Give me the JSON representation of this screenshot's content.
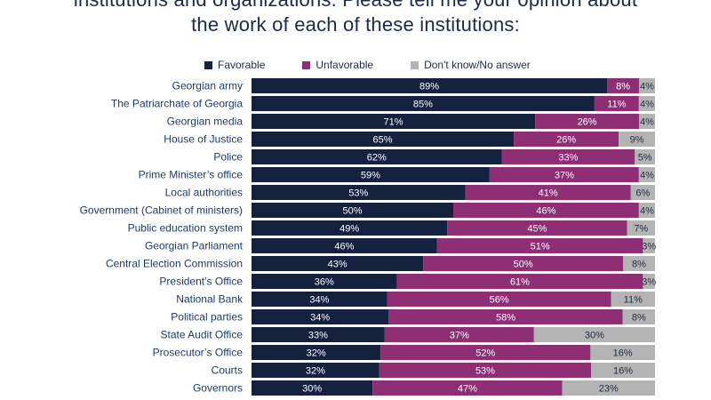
{
  "title_lines": [
    "institutions and organizations. Please tell me your opinion about",
    "the work of each of these institutions:"
  ],
  "colors": {
    "favorable": "#14213f",
    "unfavorable": "#8e2f76",
    "dont_know": "#b4b4b4",
    "label_light": "#ffffff",
    "label_dark": "#1f2b45"
  },
  "chart_data": {
    "type": "bar",
    "orientation": "horizontal",
    "stacked": true,
    "xlim": [
      0,
      100
    ],
    "legend_position": "top",
    "grid": false,
    "categories": [
      "Georgian army",
      "The Patriarchate of Georgia",
      "Georgian media",
      "House of Justice",
      "Police",
      "Prime Minister’s office",
      "Local authorities",
      "Government (Cabinet of ministers)",
      "Public education system",
      "Georgian Parliament",
      "Central Election Commission",
      "President’s Office",
      "National Bank",
      "Political parties",
      "State Audit Office",
      "Prosecutor’s Office",
      "Courts",
      "Governors"
    ],
    "series": [
      {
        "name": "Favorable",
        "values": [
          89,
          85,
          71,
          65,
          62,
          59,
          53,
          50,
          49,
          46,
          43,
          36,
          34,
          34,
          33,
          32,
          32,
          30
        ],
        "labels": [
          "89%",
          "85%",
          "71%",
          "65%",
          "62%",
          "59%",
          "53%",
          "50%",
          "49%",
          "46%",
          "43%",
          "36%",
          "34%",
          "34%",
          "33%",
          "32%",
          "32%",
          "30%"
        ]
      },
      {
        "name": "Unfavorable",
        "values": [
          8,
          11,
          26,
          26,
          33,
          37,
          41,
          46,
          45,
          51,
          50,
          61,
          56,
          58,
          37,
          52,
          53,
          47
        ],
        "labels": [
          "8%",
          "11%",
          "26%",
          "26%",
          "33%",
          "37%",
          "41%",
          "46%",
          "45%",
          "51%",
          "50%",
          "61%",
          "56%",
          "58%",
          "37%",
          "52%",
          "53%",
          "47%"
        ]
      },
      {
        "name": "Don't know/No answer",
        "values": [
          4,
          4,
          4,
          9,
          5,
          4,
          6,
          4,
          7,
          3,
          8,
          3,
          11,
          8,
          30,
          16,
          16,
          23
        ],
        "labels": [
          "4%",
          "4%",
          "4%",
          "9%",
          "5%",
          "4%",
          "6%",
          "4%",
          "7%",
          "3%",
          "8%",
          "3%",
          "11%",
          "8%",
          "30%",
          "16%",
          "16%",
          "23%"
        ]
      }
    ]
  }
}
